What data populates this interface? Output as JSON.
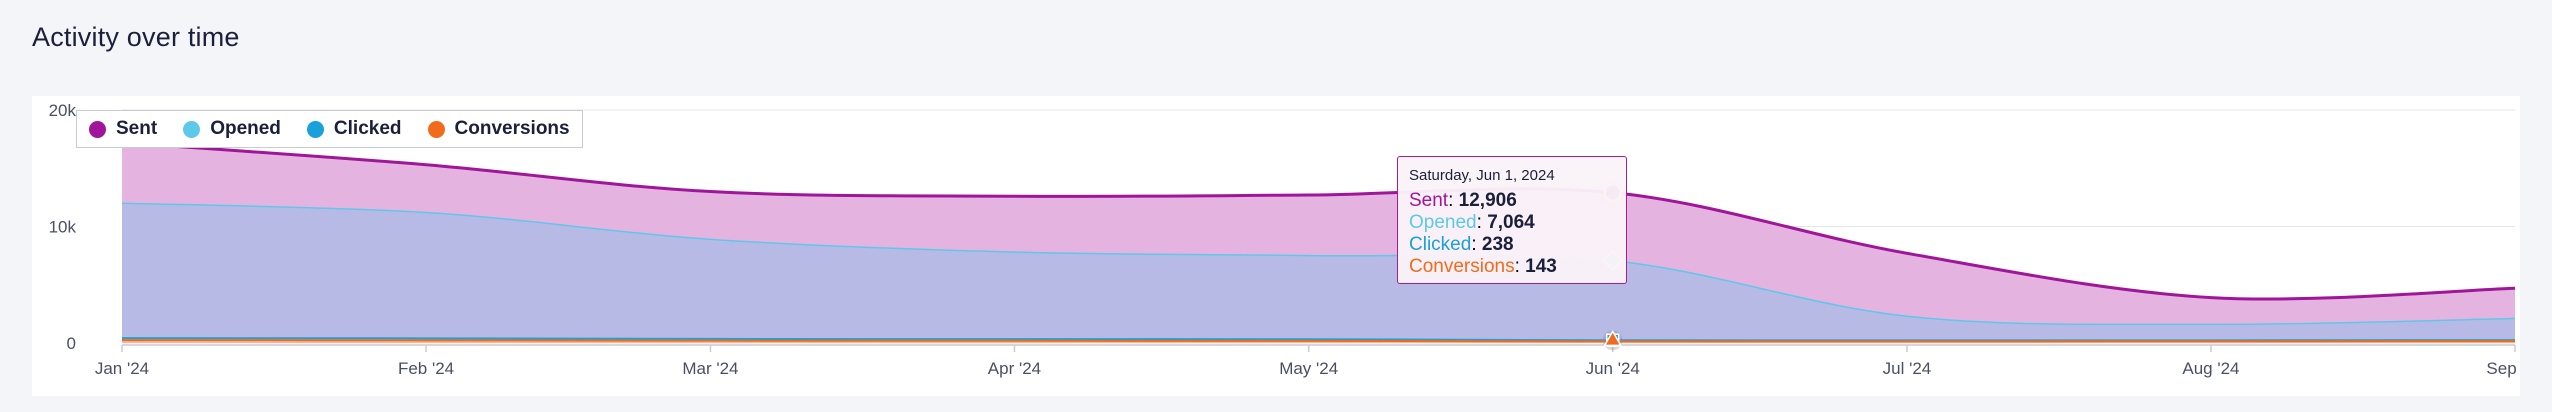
{
  "page": {
    "title": "Activity over time"
  },
  "colors": {
    "sent": "#a0159a",
    "opened": "#5ec8ea",
    "clicked": "#1aa0da",
    "conversions": "#f26b1d",
    "sent_fill": "#e4b3df",
    "opened_fill": "#b8bae6"
  },
  "tooltip": {
    "date": "Saturday, Jun 1, 2024",
    "rows": [
      {
        "label": "Sent",
        "value": "12,906"
      },
      {
        "label": "Opened",
        "value": "7,064"
      },
      {
        "label": "Clicked",
        "value": "238"
      },
      {
        "label": "Conversions",
        "value": "143"
      }
    ]
  },
  "chart_data": {
    "type": "area",
    "x": [
      "2024-01-01",
      "2024-02-01",
      "2024-03-01",
      "2024-04-01",
      "2024-05-01",
      "2024-06-01",
      "2024-07-01",
      "2024-08-01",
      "2024-09-01"
    ],
    "x_tick_labels": [
      "Jan '24",
      "Feb '24",
      "Mar '24",
      "Apr '24",
      "May '24",
      "Jun '24",
      "Jul '24",
      "Aug '24",
      "Sep '24"
    ],
    "y_tick_labels": [
      "0",
      "10k",
      "20k"
    ],
    "ylim": [
      0,
      20000
    ],
    "grid": true,
    "legend_position": "top-left",
    "highlight_x": "2024-06-01",
    "series": [
      {
        "name": "Sent",
        "values": [
          17200,
          15300,
          13000,
          12600,
          12700,
          12906,
          7700,
          3900,
          4700
        ]
      },
      {
        "name": "Opened",
        "values": [
          12000,
          11200,
          8900,
          7800,
          7500,
          7064,
          2300,
          1600,
          2100
        ]
      },
      {
        "name": "Clicked",
        "values": [
          420,
          400,
          350,
          330,
          320,
          238,
          220,
          230,
          250
        ]
      },
      {
        "name": "Conversions",
        "values": [
          250,
          230,
          200,
          190,
          180,
          143,
          140,
          150,
          160
        ]
      }
    ]
  }
}
